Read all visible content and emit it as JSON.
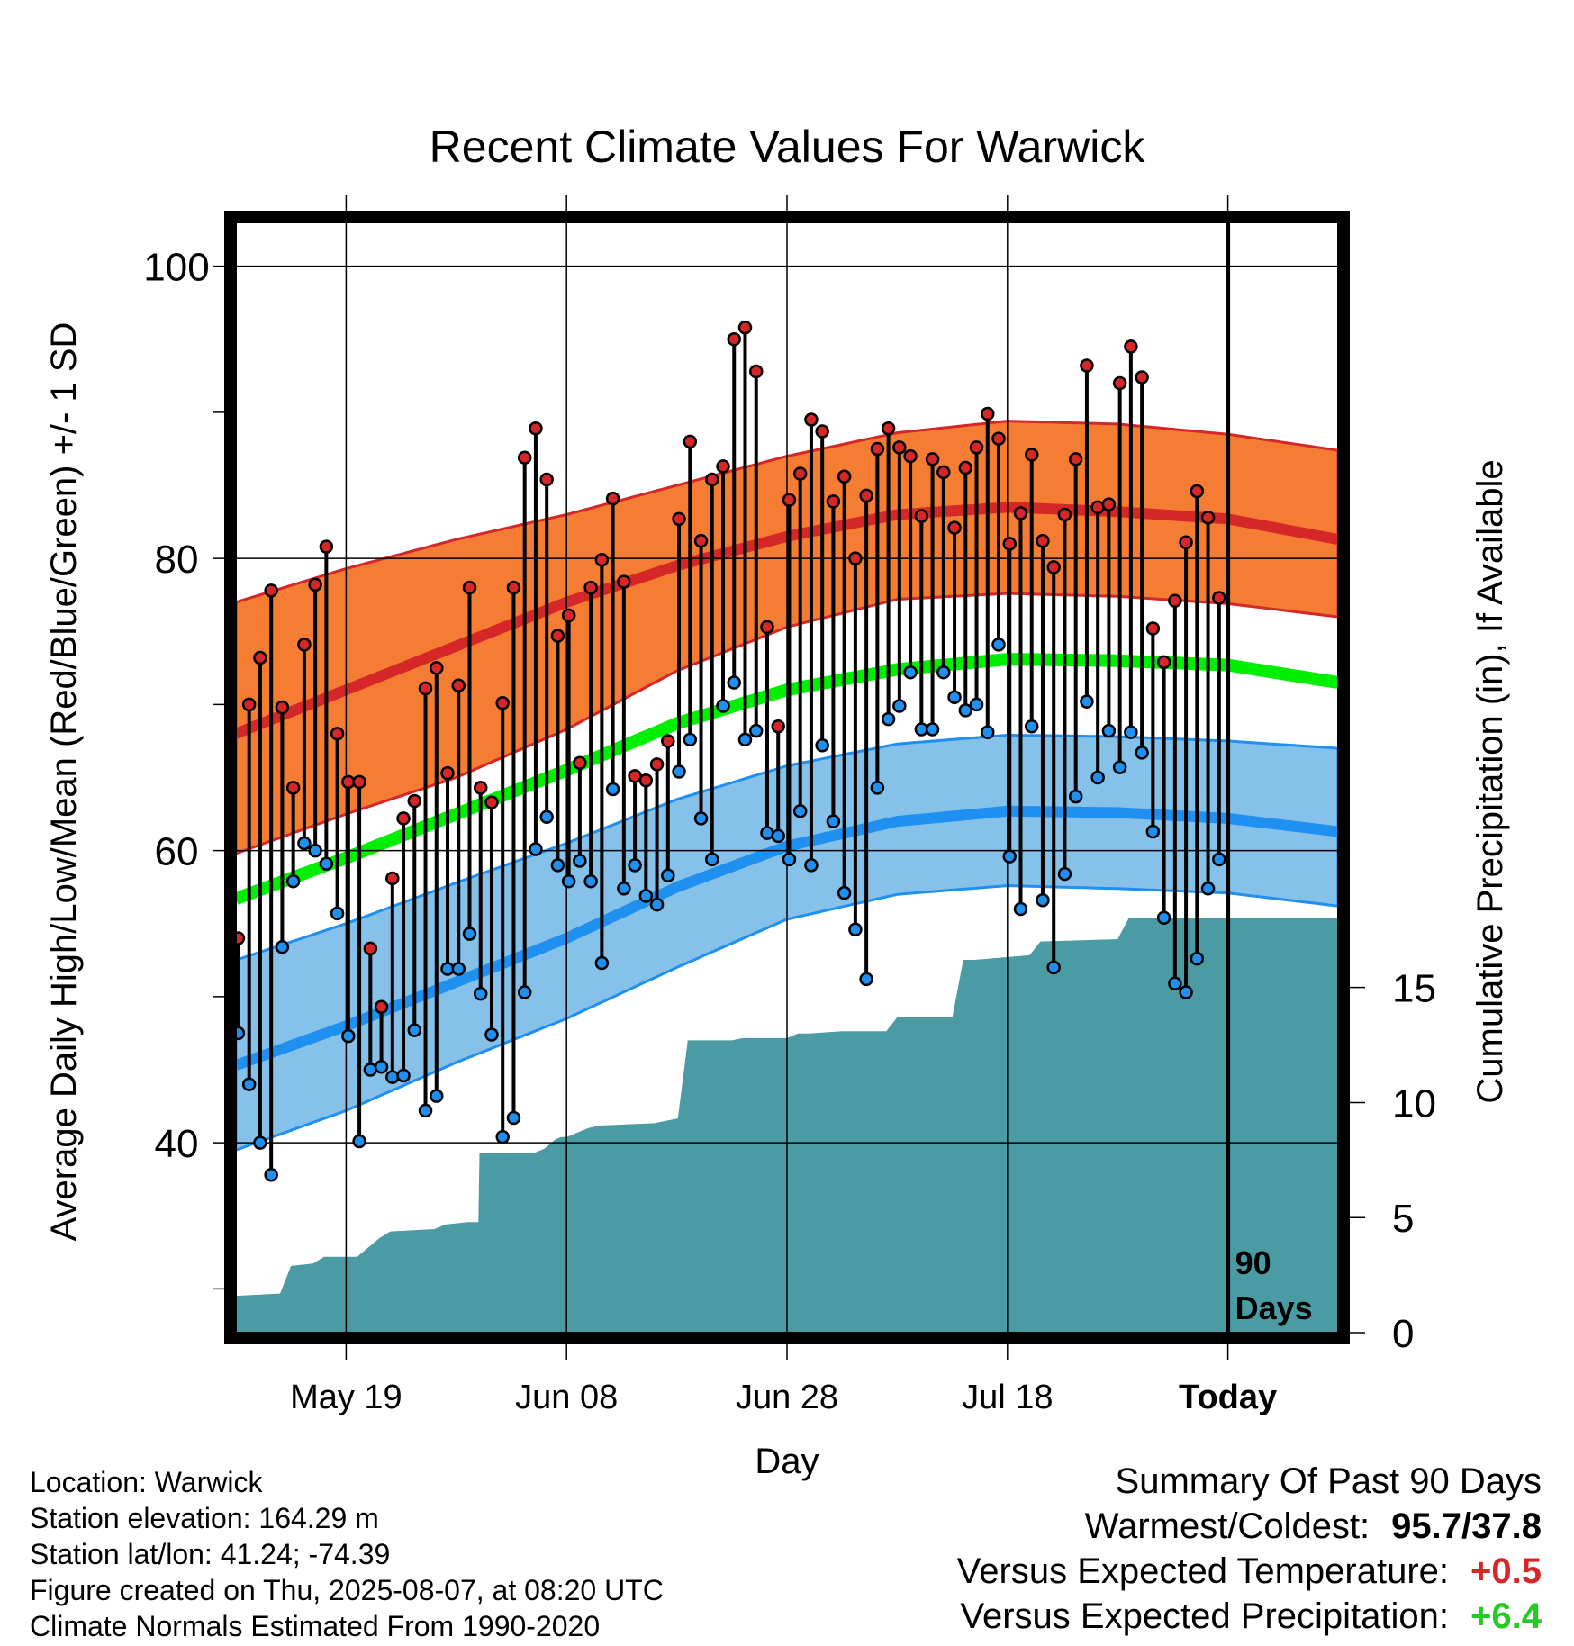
{
  "chart_data": {
    "type": "line",
    "title": "Recent Climate Values For Warwick",
    "xlabel": "Day",
    "ylabel": "Average Daily High/Low/Mean (Red/Blue/Green) +/- 1 SD",
    "y2label": "Cumulative Precipitation (in), If Available",
    "ylim": [
      27,
      103
    ],
    "y2lim": [
      0,
      18
    ],
    "yticks": [
      40,
      60,
      80,
      100
    ],
    "y2ticks": [
      0,
      5,
      10,
      15
    ],
    "xlim": [
      0,
      100
    ],
    "x_tick_labels": [
      {
        "day": 10,
        "label": "May 19"
      },
      {
        "day": 30,
        "label": "Jun 08"
      },
      {
        "day": 50,
        "label": "Jun 28"
      },
      {
        "day": 70,
        "label": "Jul 18"
      },
      {
        "day": 90,
        "label": "Today"
      }
    ],
    "today_label": [
      "90",
      "Days"
    ],
    "colors": {
      "high_band": "#f47c33",
      "high_mean": "#d62728",
      "low_band": "#85c1e9",
      "low_mean": "#1f8ff0",
      "mean": "#00ee00",
      "precip": "#4a9ba4",
      "high_dot": "#d62728",
      "low_dot": "#1f8ff0"
    },
    "normals": {
      "days": [
        0,
        10,
        20,
        30,
        40,
        50,
        60,
        70,
        80,
        90,
        100
      ],
      "high_mean": [
        68,
        71,
        74,
        77,
        79.5,
        81.5,
        83,
        83.5,
        83.2,
        82.7,
        81.3
      ],
      "high_upper": [
        77,
        79.3,
        81.3,
        83,
        85,
        87,
        88.6,
        89.4,
        89.2,
        88.5,
        87.4
      ],
      "high_lower": [
        59.8,
        62.5,
        65,
        68.3,
        72.3,
        75.3,
        77.2,
        77.6,
        77.4,
        76.9,
        76
      ],
      "mean": [
        56.7,
        59.5,
        62.5,
        65.5,
        68.7,
        71,
        72.4,
        73.1,
        73,
        72.7,
        71.5
      ],
      "low_mean": [
        45.3,
        48,
        51,
        54,
        57.5,
        60.3,
        62,
        62.7,
        62.6,
        62.2,
        61.3
      ],
      "low_upper": [
        52.5,
        55,
        57.8,
        60.5,
        63.5,
        65.8,
        67.3,
        67.9,
        67.8,
        67.5,
        67
      ],
      "low_lower": [
        39.5,
        42.2,
        45.5,
        48.5,
        52,
        55.3,
        57,
        57.6,
        57.4,
        57.1,
        56.2
      ]
    },
    "series": [
      {
        "name": "High",
        "values": [
          54,
          70,
          73.2,
          77.8,
          69.8,
          64.3,
          74.1,
          78.2,
          80.8,
          68,
          64.7,
          64.7,
          53.3,
          49.3,
          58.1,
          62.2,
          63.4,
          71.1,
          72.5,
          65.3,
          71.3,
          78,
          64.3,
          63.3,
          70.1,
          78,
          86.9,
          88.9,
          85.4,
          74.7,
          76.1,
          66,
          78,
          79.9,
          84.1,
          78.4,
          65.1,
          64.8,
          65.9,
          67.5,
          82.7,
          88,
          81.2,
          85.4,
          86.3,
          95,
          95.8,
          92.8,
          75.3,
          68.5,
          84,
          85.8,
          89.5,
          88.7,
          83.9,
          85.6,
          80,
          84.3,
          87.5,
          88.9,
          87.6,
          87,
          82.9,
          86.8,
          85.9,
          82.1,
          86.2,
          87.6,
          89.9,
          88.2,
          81,
          83.1,
          87.1,
          81.2,
          79.4,
          83,
          86.8,
          93.2,
          83.5,
          83.7,
          92,
          94.5,
          92.4,
          75.2,
          72.9,
          77.1,
          81.1,
          84.6,
          82.8,
          77.3
        ],
        "color": "#d62728"
      },
      {
        "name": "Low",
        "values": [
          47.5,
          44,
          40,
          37.8,
          53.4,
          57.9,
          60.5,
          60,
          59.1,
          55.7,
          47.3,
          40.1,
          45,
          45.2,
          44.5,
          44.6,
          47.7,
          42.2,
          43.2,
          51.9,
          51.9,
          54.3,
          50.2,
          47.4,
          40.4,
          41.7,
          50.3,
          60.1,
          62.3,
          59,
          57.9,
          59.3,
          57.9,
          52.3,
          64.2,
          57.4,
          59,
          56.9,
          56.3,
          58.3,
          65.4,
          67.6,
          62.2,
          59.4,
          69.9,
          71.5,
          67.6,
          68.2,
          61.2,
          61,
          59.4,
          62.7,
          59,
          67.2,
          62,
          57.1,
          54.6,
          51.2,
          64.3,
          69,
          69.9,
          72.2,
          68.3,
          68.3,
          72.2,
          70.5,
          69.6,
          70,
          68.1,
          74.1,
          59.6,
          56,
          68.5,
          56.6,
          52,
          58.4,
          63.7,
          70.2,
          65,
          68.2,
          65.7,
          68.1,
          66.7,
          61.3,
          55.4,
          50.9,
          50.3,
          52.6,
          57.4,
          59.4
        ],
        "color": "#1f8ff0"
      },
      {
        "name": "Cumulative Precipitation",
        "x": [
          0,
          4,
          5,
          7,
          8,
          11,
          13,
          14,
          18,
          19,
          21,
          22,
          22.1,
          23,
          27,
          28,
          29,
          29.5,
          30,
          32,
          33,
          38,
          40,
          40.1,
          41,
          45,
          46,
          50,
          51,
          52,
          55,
          59,
          60,
          60.1,
          61,
          65,
          66,
          66.1,
          67,
          72,
          73,
          80,
          81,
          84,
          85,
          85.1,
          100
        ],
        "values": [
          1.6,
          1.7,
          2.9,
          3.0,
          3.3,
          3.3,
          4.1,
          4.4,
          4.5,
          4.7,
          4.8,
          4.8,
          7.8,
          7.8,
          7.8,
          8.0,
          8.4,
          8.5,
          8.5,
          8.9,
          9.0,
          9.1,
          9.3,
          9.3,
          12.7,
          12.7,
          12.8,
          12.8,
          13.0,
          13.0,
          13.1,
          13.1,
          13.7,
          13.7,
          13.7,
          13.7,
          16.2,
          16.2,
          16.2,
          16.4,
          17.0,
          17.1,
          18.0,
          18.0,
          18.0,
          18.0,
          18.0
        ],
        "color": "#4a9ba4"
      }
    ],
    "high_low_start_day": 0.2
  },
  "info": {
    "location": "Location: Warwick",
    "elevation": "Station elevation: 164.29 m",
    "latlon": "Station lat/lon: 41.24; -74.39",
    "created": "Figure created on Thu, 2025-08-07, at 08:20 UTC",
    "normals": "Climate Normals Estimated From 1990-2020"
  },
  "summary": {
    "title": "Summary Of Past 90 Days",
    "warm_cold_label": "Warmest/Coldest:",
    "warm_cold_value": "95.7/37.8",
    "temp_label": "Versus Expected Temperature:",
    "temp_value": "+0.5",
    "precip_label": "Versus Expected Precipitation:",
    "precip_value": "+6.4"
  }
}
